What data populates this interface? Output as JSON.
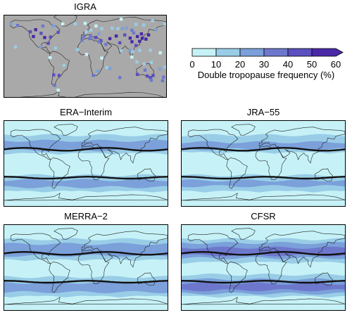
{
  "chart_data": {
    "type": "heatmap",
    "colorbar": {
      "label": "Double tropopause frequency (%)",
      "ticks": [
        "0",
        "10",
        "20",
        "30",
        "40",
        "50",
        "60"
      ],
      "levels": [
        0,
        10,
        20,
        30,
        40,
        50,
        60
      ],
      "colors": [
        "#c6f2f7",
        "#99cde7",
        "#7ba0da",
        "#6d78cc",
        "#5c4fbf",
        "#4929a7"
      ],
      "extend": "max"
    },
    "panels": [
      {
        "title": "IGRA",
        "kind": "stations",
        "background": "#a9a9a9",
        "stations": [
          {
            "lon": -150,
            "lat": 61,
            "pct": 35
          },
          {
            "lon": -122,
            "lat": 49,
            "pct": 40
          },
          {
            "lon": -110,
            "lat": 53,
            "pct": 55
          },
          {
            "lon": -98,
            "lat": 46,
            "pct": 45
          },
          {
            "lon": -90,
            "lat": 38,
            "pct": 50
          },
          {
            "lon": -77,
            "lat": 39,
            "pct": 45
          },
          {
            "lon": -82,
            "lat": 27,
            "pct": 40
          },
          {
            "lon": -99,
            "lat": 20,
            "pct": 25
          },
          {
            "lon": -66,
            "lat": 18,
            "pct": 15
          },
          {
            "lon": -60,
            "lat": 48,
            "pct": 45
          },
          {
            "lon": -94,
            "lat": 60,
            "pct": 35
          },
          {
            "lon": -115,
            "lat": 40,
            "pct": 55
          },
          {
            "lon": -70,
            "lat": 60,
            "pct": 20
          },
          {
            "lon": -50,
            "lat": 64,
            "pct": 5
          },
          {
            "lon": -22,
            "lat": 64,
            "pct": 10
          },
          {
            "lon": -155,
            "lat": 20,
            "pct": 15
          },
          {
            "lon": -78,
            "lat": 0,
            "pct": 5
          },
          {
            "lon": -47,
            "lat": -15,
            "pct": 15
          },
          {
            "lon": -58,
            "lat": -34,
            "pct": 40
          },
          {
            "lon": -70,
            "lat": -33,
            "pct": 45
          },
          {
            "lon": -68,
            "lat": -53,
            "pct": 30
          },
          {
            "lon": -60,
            "lat": -62,
            "pct": 5
          },
          {
            "lon": -3,
            "lat": 40,
            "pct": 30
          },
          {
            "lon": 2,
            "lat": 49,
            "pct": 15
          },
          {
            "lon": 13,
            "lat": 52,
            "pct": 10
          },
          {
            "lon": 24,
            "lat": 60,
            "pct": 5
          },
          {
            "lon": 37,
            "lat": 55,
            "pct": 10
          },
          {
            "lon": 30,
            "lat": 45,
            "pct": 20
          },
          {
            "lon": 12,
            "lat": 42,
            "pct": 30
          },
          {
            "lon": 23,
            "lat": 38,
            "pct": 40
          },
          {
            "lon": 35,
            "lat": 32,
            "pct": 45
          },
          {
            "lon": 46,
            "lat": 25,
            "pct": 30
          },
          {
            "lon": 55,
            "lat": 36,
            "pct": 50
          },
          {
            "lon": 69,
            "lat": 41,
            "pct": 55
          },
          {
            "lon": 77,
            "lat": 28,
            "pct": 40
          },
          {
            "lon": 80,
            "lat": 13,
            "pct": 15
          },
          {
            "lon": 60,
            "lat": 56,
            "pct": 10
          },
          {
            "lon": 73,
            "lat": 55,
            "pct": 15
          },
          {
            "lon": 83,
            "lat": 55,
            "pct": 20
          },
          {
            "lon": 92,
            "lat": 56,
            "pct": 25
          },
          {
            "lon": 104,
            "lat": 52,
            "pct": 30
          },
          {
            "lon": 113,
            "lat": 63,
            "pct": 10
          },
          {
            "lon": 130,
            "lat": 62,
            "pct": 15
          },
          {
            "lon": 88,
            "lat": 43,
            "pct": 45
          },
          {
            "lon": 100,
            "lat": 37,
            "pct": 55
          },
          {
            "lon": 116,
            "lat": 40,
            "pct": 60
          },
          {
            "lon": 121,
            "lat": 31,
            "pct": 55
          },
          {
            "lon": 113,
            "lat": 23,
            "pct": 45
          },
          {
            "lon": 127,
            "lat": 37,
            "pct": 60
          },
          {
            "lon": 135,
            "lat": 35,
            "pct": 60
          },
          {
            "lon": 141,
            "lat": 43,
            "pct": 55
          },
          {
            "lon": 104,
            "lat": 30,
            "pct": 50
          },
          {
            "lon": 108,
            "lat": 47,
            "pct": 35
          },
          {
            "lon": 125,
            "lat": 45,
            "pct": 50
          },
          {
            "lon": 100,
            "lat": 14,
            "pct": 20
          },
          {
            "lon": 106,
            "lat": 11,
            "pct": 15
          },
          {
            "lon": 121,
            "lat": 14,
            "pct": 15
          },
          {
            "lon": 104,
            "lat": 1,
            "pct": 5
          },
          {
            "lon": 115,
            "lat": -8,
            "pct": 10
          },
          {
            "lon": 131,
            "lat": -12,
            "pct": 15
          },
          {
            "lon": 147,
            "lat": -9,
            "pct": 10
          },
          {
            "lon": 116,
            "lat": -32,
            "pct": 40
          },
          {
            "lon": 138,
            "lat": -35,
            "pct": 45
          },
          {
            "lon": 151,
            "lat": -34,
            "pct": 45
          },
          {
            "lon": 145,
            "lat": -38,
            "pct": 40
          },
          {
            "lon": 147,
            "lat": -43,
            "pct": 30
          },
          {
            "lon": 133,
            "lat": -24,
            "pct": 35
          },
          {
            "lon": 174,
            "lat": -37,
            "pct": 35
          },
          {
            "lon": 172,
            "lat": -44,
            "pct": 30
          },
          {
            "lon": 178,
            "lat": -18,
            "pct": 15
          },
          {
            "lon": 166,
            "lat": -22,
            "pct": 20
          },
          {
            "lon": 167,
            "lat": 9,
            "pct": 5
          },
          {
            "lon": 145,
            "lat": 14,
            "pct": 10
          },
          {
            "lon": 18,
            "lat": -34,
            "pct": 35
          },
          {
            "lon": 28,
            "lat": -26,
            "pct": 25
          },
          {
            "lon": 37,
            "lat": -1,
            "pct": 5
          },
          {
            "lon": 3,
            "lat": 6,
            "pct": 5
          },
          {
            "lon": -17,
            "lat": 15,
            "pct": 10
          },
          {
            "lon": 55,
            "lat": -21,
            "pct": 20
          },
          {
            "lon": 48,
            "lat": -19,
            "pct": 15
          },
          {
            "lon": 31,
            "lat": 30,
            "pct": 35
          },
          {
            "lon": 10,
            "lat": 36,
            "pct": 35
          },
          {
            "lon": -7,
            "lat": 33,
            "pct": 30
          },
          {
            "lon": 77,
            "lat": -38,
            "pct": 30
          },
          {
            "lon": 158,
            "lat": 53,
            "pct": 20
          },
          {
            "lon": 177,
            "lat": 64,
            "pct": 15
          },
          {
            "lon": -165,
            "lat": 64,
            "pct": 25
          },
          {
            "lon": 0,
            "lat": 65,
            "pct": 5
          },
          {
            "lon": 80,
            "lat": 73,
            "pct": 5
          },
          {
            "lon": 150,
            "lat": 70,
            "pct": 10
          }
        ]
      },
      {
        "title": "ERA−Interim",
        "kind": "field",
        "bands": [
          {
            "lat1": 60,
            "lat2": 90,
            "pct": 5
          },
          {
            "lat1": 20,
            "lat2": 60,
            "pct": 15
          },
          {
            "lat1": 28,
            "lat2": 48,
            "pct": 25
          },
          {
            "lat1": -25,
            "lat2": 20,
            "pct": 5
          },
          {
            "lat1": -60,
            "lat2": -25,
            "pct": 15
          },
          {
            "lat1": -50,
            "lat2": -35,
            "pct": 25
          },
          {
            "lat1": -90,
            "lat2": -60,
            "pct": 5
          }
        ],
        "lines": [
          {
            "lat": 30,
            "amp": 3
          },
          {
            "lat": -30,
            "amp": 2
          }
        ]
      },
      {
        "title": "JRA−55",
        "kind": "field",
        "bands": [
          {
            "lat1": 60,
            "lat2": 90,
            "pct": 5
          },
          {
            "lat1": 22,
            "lat2": 60,
            "pct": 15
          },
          {
            "lat1": 30,
            "lat2": 45,
            "pct": 25
          },
          {
            "lat1": -25,
            "lat2": 22,
            "pct": 5
          },
          {
            "lat1": -60,
            "lat2": -25,
            "pct": 15
          },
          {
            "lat1": -48,
            "lat2": -36,
            "pct": 25
          },
          {
            "lat1": -90,
            "lat2": -60,
            "pct": 5
          }
        ],
        "lines": [
          {
            "lat": 30,
            "amp": 3
          },
          {
            "lat": -30,
            "amp": 2
          }
        ]
      },
      {
        "title": "MERRA−2",
        "kind": "field",
        "bands": [
          {
            "lat1": 60,
            "lat2": 90,
            "pct": 5
          },
          {
            "lat1": 15,
            "lat2": 60,
            "pct": 15
          },
          {
            "lat1": 25,
            "lat2": 50,
            "pct": 25
          },
          {
            "lat1": -20,
            "lat2": 15,
            "pct": 5
          },
          {
            "lat1": -62,
            "lat2": -20,
            "pct": 15
          },
          {
            "lat1": -52,
            "lat2": -32,
            "pct": 25
          },
          {
            "lat1": -90,
            "lat2": -62,
            "pct": 5
          }
        ],
        "lines": [
          {
            "lat": 30,
            "amp": 3
          },
          {
            "lat": -30,
            "amp": 2
          }
        ]
      },
      {
        "title": "CFSR",
        "kind": "field",
        "bands": [
          {
            "lat1": 60,
            "lat2": 90,
            "pct": 5
          },
          {
            "lat1": 10,
            "lat2": 60,
            "pct": 15
          },
          {
            "lat1": 20,
            "lat2": 52,
            "pct": 25
          },
          {
            "lat1": 26,
            "lat2": 42,
            "pct": 35
          },
          {
            "lat1": -15,
            "lat2": 10,
            "pct": 5
          },
          {
            "lat1": -62,
            "lat2": -15,
            "pct": 15
          },
          {
            "lat1": -55,
            "lat2": -25,
            "pct": 25
          },
          {
            "lat1": -48,
            "lat2": -34,
            "pct": 35
          },
          {
            "lat1": -90,
            "lat2": -62,
            "pct": 5
          }
        ],
        "lines": [
          {
            "lat": 30,
            "amp": 3
          },
          {
            "lat": -30,
            "amp": 2
          }
        ]
      }
    ]
  }
}
